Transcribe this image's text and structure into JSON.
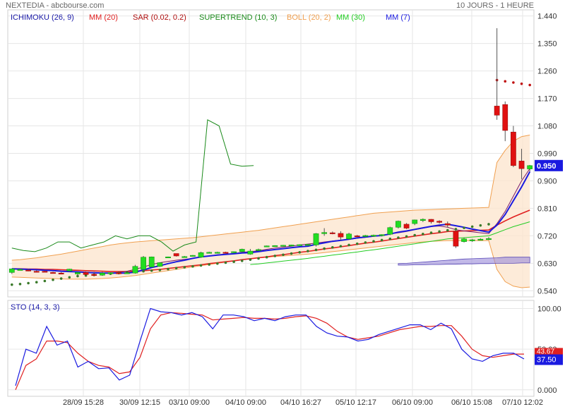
{
  "header": {
    "left": "NEXTEDIA - abcbourse.com",
    "right": "10 JOURS - 1 HEURE"
  },
  "legend": [
    {
      "label": "ICHIMOKU (26, 9)",
      "color": "#1a1aa8"
    },
    {
      "label": "MM (20)",
      "color": "#e02020"
    },
    {
      "label": "SAR (0.02, 0.2)",
      "color": "#b01010"
    },
    {
      "label": "SUPERTREND (10, 3)",
      "color": "#1a8a1a"
    },
    {
      "label": "BOLL (20, 2)",
      "color": "#f0a050"
    },
    {
      "label": "MM (30)",
      "color": "#22cc22"
    },
    {
      "label": "MM (7)",
      "color": "#1a1ae0"
    }
  ],
  "colors": {
    "up": "#22dd22",
    "down": "#e01010",
    "ichimoku": "#1a1aa8",
    "ma20": "#e02020",
    "ma30": "#22cc22",
    "ma7": "#1a1ae0",
    "sar": "#a01010",
    "supertrend": "#1a8a1a",
    "boll": "#f0a050",
    "sto_k": "#1a1ae0",
    "sto_d": "#e02020",
    "price_badge": "#1a1ae0",
    "grid": "#e6e6e6"
  },
  "chart_data": [
    {
      "type": "candlestick",
      "price_label": "0.950",
      "y_ticks": [
        "1.440",
        "1.350",
        "1.260",
        "1.170",
        "1.080",
        "0.990",
        "0.900",
        "0.810",
        "0.720",
        "0.630",
        "0.540"
      ],
      "ylim": [
        0.52,
        1.46
      ],
      "x_ticks": [
        "28/09 15:28",
        "30/09 12:15",
        "03/10 09:00",
        "04/10 09:00",
        "04/10 16:27",
        "05/10 12:17",
        "06/10 09:00",
        "06/10 15:08",
        "07/10 12:02"
      ],
      "candles": [
        {
          "o": 0.6,
          "h": 0.612,
          "l": 0.595,
          "c": 0.612
        },
        {
          "o": 0.609,
          "h": 0.613,
          "l": 0.607,
          "c": 0.61
        },
        {
          "o": 0.608,
          "h": 0.612,
          "l": 0.604,
          "c": 0.606
        },
        {
          "o": 0.604,
          "h": 0.607,
          "l": 0.6,
          "c": 0.603
        },
        {
          "o": 0.604,
          "h": 0.606,
          "l": 0.601,
          "c": 0.602
        },
        {
          "o": 0.6,
          "h": 0.602,
          "l": 0.597,
          "c": 0.599
        },
        {
          "o": 0.598,
          "h": 0.601,
          "l": 0.595,
          "c": 0.596
        },
        {
          "o": 0.605,
          "h": 0.612,
          "l": 0.602,
          "c": 0.611
        },
        {
          "o": 0.595,
          "h": 0.602,
          "l": 0.588,
          "c": 0.6
        },
        {
          "o": 0.6,
          "h": 0.603,
          "l": 0.597,
          "c": 0.593
        },
        {
          "o": 0.594,
          "h": 0.602,
          "l": 0.589,
          "c": 0.59
        },
        {
          "o": 0.591,
          "h": 0.602,
          "l": 0.589,
          "c": 0.598
        },
        {
          "o": 0.598,
          "h": 0.6,
          "l": 0.596,
          "c": 0.599
        },
        {
          "o": 0.599,
          "h": 0.601,
          "l": 0.597,
          "c": 0.598
        },
        {
          "o": 0.598,
          "h": 0.6,
          "l": 0.596,
          "c": 0.599
        },
        {
          "o": 0.598,
          "h": 0.625,
          "l": 0.596,
          "c": 0.62
        },
        {
          "o": 0.61,
          "h": 0.654,
          "l": 0.608,
          "c": 0.65
        },
        {
          "o": 0.618,
          "h": 0.652,
          "l": 0.617,
          "c": 0.651
        },
        {
          "o": 0.62,
          "h": 0.633,
          "l": 0.618,
          "c": 0.632
        },
        {
          "o": 0.65,
          "h": 0.652,
          "l": 0.648,
          "c": 0.651
        },
        {
          "o": 0.662,
          "h": 0.662,
          "l": 0.652,
          "c": 0.654
        },
        {
          "o": 0.651,
          "h": 0.654,
          "l": 0.65,
          "c": 0.652
        },
        {
          "o": 0.655,
          "h": 0.657,
          "l": 0.653,
          "c": 0.656
        },
        {
          "o": 0.65,
          "h": 0.668,
          "l": 0.648,
          "c": 0.665
        },
        {
          "o": 0.665,
          "h": 0.668,
          "l": 0.663,
          "c": 0.666
        },
        {
          "o": 0.665,
          "h": 0.668,
          "l": 0.664,
          "c": 0.666
        },
        {
          "o": 0.666,
          "h": 0.668,
          "l": 0.664,
          "c": 0.665
        },
        {
          "o": 0.666,
          "h": 0.669,
          "l": 0.663,
          "c": 0.668
        },
        {
          "o": 0.668,
          "h": 0.678,
          "l": 0.665,
          "c": 0.676
        },
        {
          "o": 0.66,
          "h": 0.677,
          "l": 0.658,
          "c": 0.67
        },
        {
          "o": 0.673,
          "h": 0.678,
          "l": 0.67,
          "c": 0.675
        },
        {
          "o": 0.686,
          "h": 0.688,
          "l": 0.684,
          "c": 0.687
        },
        {
          "o": 0.687,
          "h": 0.689,
          "l": 0.685,
          "c": 0.688
        },
        {
          "o": 0.688,
          "h": 0.69,
          "l": 0.686,
          "c": 0.689
        },
        {
          "o": 0.689,
          "h": 0.691,
          "l": 0.687,
          "c": 0.69
        },
        {
          "o": 0.69,
          "h": 0.692,
          "l": 0.688,
          "c": 0.691
        },
        {
          "o": 0.691,
          "h": 0.693,
          "l": 0.689,
          "c": 0.692
        },
        {
          "o": 0.69,
          "h": 0.729,
          "l": 0.685,
          "c": 0.727
        },
        {
          "o": 0.727,
          "h": 0.745,
          "l": 0.72,
          "c": 0.731
        },
        {
          "o": 0.73,
          "h": 0.734,
          "l": 0.725,
          "c": 0.729
        },
        {
          "o": 0.728,
          "h": 0.735,
          "l": 0.705,
          "c": 0.716
        },
        {
          "o": 0.71,
          "h": 0.73,
          "l": 0.707,
          "c": 0.726
        },
        {
          "o": 0.72,
          "h": 0.723,
          "l": 0.716,
          "c": 0.719
        },
        {
          "o": 0.719,
          "h": 0.723,
          "l": 0.716,
          "c": 0.721
        },
        {
          "o": 0.72,
          "h": 0.724,
          "l": 0.717,
          "c": 0.722
        },
        {
          "o": 0.721,
          "h": 0.725,
          "l": 0.718,
          "c": 0.724
        },
        {
          "o": 0.725,
          "h": 0.75,
          "l": 0.722,
          "c": 0.747
        },
        {
          "o": 0.748,
          "h": 0.77,
          "l": 0.744,
          "c": 0.768
        },
        {
          "o": 0.758,
          "h": 0.762,
          "l": 0.742,
          "c": 0.745
        },
        {
          "o": 0.76,
          "h": 0.773,
          "l": 0.755,
          "c": 0.772
        },
        {
          "o": 0.77,
          "h": 0.777,
          "l": 0.765,
          "c": 0.774
        },
        {
          "o": 0.774,
          "h": 0.775,
          "l": 0.76,
          "c": 0.766
        },
        {
          "o": 0.768,
          "h": 0.771,
          "l": 0.76,
          "c": 0.764
        },
        {
          "o": 0.76,
          "h": 0.767,
          "l": 0.748,
          "c": 0.755
        },
        {
          "o": 0.735,
          "h": 0.738,
          "l": 0.68,
          "c": 0.686
        },
        {
          "o": 0.701,
          "h": 0.713,
          "l": 0.698,
          "c": 0.71
        },
        {
          "o": 0.705,
          "h": 0.71,
          "l": 0.7,
          "c": 0.707
        },
        {
          "o": 0.708,
          "h": 0.712,
          "l": 0.706,
          "c": 0.709
        },
        {
          "o": 0.71,
          "h": 0.716,
          "l": 0.706,
          "c": 0.711
        },
        {
          "o": 1.145,
          "h": 1.4,
          "l": 1.1,
          "c": 1.115
        },
        {
          "o": 1.15,
          "h": 1.16,
          "l": 1.03,
          "c": 1.065
        },
        {
          "o": 1.06,
          "h": 1.08,
          "l": 0.945,
          "c": 0.95
        },
        {
          "o": 0.965,
          "h": 1.005,
          "l": 0.905,
          "c": 0.94
        },
        {
          "o": 0.939,
          "h": 0.952,
          "l": 0.93,
          "c": 0.95
        }
      ],
      "ma7": [
        0.612,
        0.611,
        0.61,
        0.609,
        0.607,
        0.606,
        0.604,
        0.603,
        0.602,
        0.6,
        0.599,
        0.598,
        0.598,
        0.598,
        0.598,
        0.601,
        0.608,
        0.616,
        0.622,
        0.629,
        0.635,
        0.64,
        0.646,
        0.651,
        0.654,
        0.657,
        0.659,
        0.661,
        0.664,
        0.665,
        0.668,
        0.672,
        0.675,
        0.678,
        0.681,
        0.684,
        0.686,
        0.692,
        0.697,
        0.702,
        0.705,
        0.709,
        0.713,
        0.716,
        0.719,
        0.721,
        0.726,
        0.732,
        0.736,
        0.741,
        0.746,
        0.751,
        0.755,
        0.758,
        0.753,
        0.748,
        0.742,
        0.737,
        0.732,
        0.755,
        0.79,
        0.835,
        0.88,
        0.93
      ],
      "ma20": [
        0.612,
        0.612,
        0.611,
        0.611,
        0.61,
        0.61,
        0.609,
        0.608,
        0.607,
        0.606,
        0.605,
        0.604,
        0.603,
        0.603,
        0.603,
        0.604,
        0.606,
        0.608,
        0.61,
        0.613,
        0.616,
        0.619,
        0.622,
        0.625,
        0.629,
        0.632,
        0.635,
        0.638,
        0.642,
        0.645,
        0.648,
        0.651,
        0.655,
        0.658,
        0.662,
        0.666,
        0.669,
        0.673,
        0.677,
        0.68,
        0.684,
        0.688,
        0.692,
        0.696,
        0.699,
        0.703,
        0.707,
        0.711,
        0.715,
        0.719,
        0.723,
        0.727,
        0.73,
        0.734,
        0.735,
        0.736,
        0.737,
        0.738,
        0.739,
        0.755,
        0.769,
        0.782,
        0.793,
        0.804
      ],
      "ma30": [
        null,
        null,
        null,
        null,
        null,
        null,
        null,
        null,
        null,
        null,
        null,
        null,
        null,
        null,
        null,
        null,
        null,
        null,
        null,
        null,
        null,
        null,
        null,
        null,
        null,
        null,
        null,
        null,
        null,
        0.626,
        0.628,
        0.631,
        0.634,
        0.637,
        0.64,
        0.643,
        0.646,
        0.65,
        0.653,
        0.657,
        0.66,
        0.664,
        0.667,
        0.671,
        0.674,
        0.678,
        0.682,
        0.686,
        0.69,
        0.694,
        0.698,
        0.702,
        0.706,
        0.71,
        0.712,
        0.714,
        0.716,
        0.718,
        0.72,
        0.73,
        0.74,
        0.75,
        0.758,
        0.766
      ],
      "ichimoku_line": [
        0.612,
        0.611,
        0.61,
        0.609,
        0.608,
        0.606,
        0.604,
        0.603,
        0.602,
        0.6,
        0.598,
        0.597,
        0.598,
        0.6,
        0.604,
        0.61,
        0.618,
        0.626,
        0.632,
        0.636,
        0.64,
        0.643,
        0.646,
        0.65,
        0.654,
        0.658,
        0.66,
        0.662,
        0.666,
        0.668,
        0.671,
        0.676,
        0.68,
        0.683,
        0.686,
        0.69,
        0.693,
        0.696,
        0.7,
        0.703,
        0.706,
        0.709,
        0.712,
        0.715,
        0.718,
        0.721,
        0.726,
        0.73,
        0.734,
        0.74,
        0.745,
        0.75,
        0.752,
        0.748,
        0.74,
        0.736,
        0.733,
        0.73,
        0.727,
        0.76,
        0.8,
        0.85,
        0.9,
        0.94
      ],
      "sar": [
        0.56,
        0.562,
        0.565,
        0.568,
        0.572,
        0.576,
        0.58,
        0.584,
        0.588,
        0.59,
        0.592,
        0.594,
        0.596,
        0.598,
        0.6,
        0.602,
        0.604,
        0.606,
        0.608,
        0.611,
        0.614,
        0.617,
        0.62,
        0.623,
        0.626,
        0.629,
        0.632,
        0.635,
        0.638,
        0.642,
        0.646,
        0.65,
        0.654,
        0.658,
        0.662,
        0.666,
        0.67,
        0.674,
        0.678,
        0.682,
        0.686,
        0.69,
        0.694,
        0.698,
        0.702,
        0.706,
        0.71,
        0.714,
        0.718,
        0.722,
        0.726,
        0.73,
        0.734,
        0.738,
        0.742,
        0.746,
        0.75,
        0.754,
        0.758,
        1.23,
        1.226,
        1.222,
        1.218,
        1.214
      ],
      "supertrend": [
        [
          0,
          0.68
        ],
        [
          2,
          0.672
        ],
        [
          4,
          0.668
        ],
        [
          6,
          0.68
        ],
        [
          8,
          0.7
        ],
        [
          10,
          0.7
        ],
        [
          12,
          0.68
        ],
        [
          14,
          0.69
        ],
        [
          16,
          0.7
        ],
        [
          18,
          0.72
        ],
        [
          20,
          0.71
        ],
        [
          22,
          0.72
        ],
        [
          24,
          0.72
        ],
        [
          26,
          0.7
        ],
        [
          28,
          0.67
        ],
        [
          30,
          0.69
        ],
        [
          32,
          0.7
        ],
        [
          34,
          1.1
        ],
        [
          36,
          1.08
        ],
        [
          38,
          0.955
        ],
        [
          40,
          0.948
        ],
        [
          42,
          0.95
        ]
      ],
      "boll_upper": [
        0.64,
        0.642,
        0.645,
        0.648,
        0.652,
        0.656,
        0.66,
        0.665,
        0.67,
        0.675,
        0.68,
        0.685,
        0.69,
        0.694,
        0.697,
        0.7,
        0.702,
        0.704,
        0.706,
        0.708,
        0.71,
        0.712,
        0.714,
        0.717,
        0.72,
        0.723,
        0.726,
        0.729,
        0.732,
        0.735,
        0.738,
        0.742,
        0.746,
        0.75,
        0.754,
        0.758,
        0.762,
        0.766,
        0.77,
        0.774,
        0.778,
        0.782,
        0.786,
        0.79,
        0.794,
        0.796,
        0.798,
        0.8,
        0.802,
        0.804,
        0.805,
        0.806,
        0.807,
        0.808,
        0.809,
        0.81,
        0.811,
        0.812,
        0.813,
        0.96,
        1.0,
        1.03,
        1.045,
        1.05
      ],
      "boll_lower": [
        0.585,
        0.584,
        0.583,
        0.582,
        0.581,
        0.58,
        0.579,
        0.578,
        0.578,
        0.578,
        0.579,
        0.58,
        0.582,
        0.584,
        0.587,
        0.59,
        0.594,
        0.598,
        0.602,
        0.606,
        0.61,
        0.614,
        0.618,
        0.622,
        0.626,
        0.63,
        0.634,
        0.638,
        0.642,
        0.645,
        0.648,
        0.65,
        0.652,
        0.654,
        0.656,
        0.658,
        0.66,
        0.662,
        0.665,
        0.668,
        0.671,
        0.674,
        0.677,
        0.68,
        0.683,
        0.686,
        0.689,
        0.692,
        0.695,
        0.698,
        0.7,
        0.702,
        0.703,
        0.704,
        0.704,
        0.704,
        0.704,
        0.704,
        0.704,
        0.61,
        0.57,
        0.555,
        0.55,
        0.552
      ]
    },
    {
      "type": "line",
      "title": "STO (14, 3, 3)",
      "y_ticks": [
        "100.00",
        "50.00",
        "0.000"
      ],
      "ylim": [
        -8,
        110
      ],
      "value_labels": [
        "43.67",
        "37.50"
      ],
      "k": [
        5,
        50,
        45,
        78,
        55,
        60,
        28,
        35,
        26,
        27,
        12,
        18,
        60,
        100,
        96,
        95,
        92,
        95,
        90,
        75,
        92,
        92,
        90,
        85,
        88,
        85,
        90,
        92,
        92,
        78,
        70,
        66,
        65,
        60,
        62,
        68,
        72,
        76,
        80,
        80,
        74,
        82,
        75,
        50,
        38,
        35,
        42,
        45,
        45,
        38
      ],
      "d": [
        0,
        30,
        38,
        60,
        60,
        58,
        45,
        35,
        30,
        28,
        20,
        22,
        40,
        75,
        92,
        95,
        94,
        93,
        92,
        86,
        87,
        88,
        89,
        88,
        88,
        87,
        88,
        90,
        91,
        88,
        82,
        72,
        65,
        62,
        64,
        66,
        70,
        74,
        76,
        78,
        78,
        79,
        79,
        66,
        50,
        42,
        40,
        42,
        44,
        44
      ]
    }
  ]
}
